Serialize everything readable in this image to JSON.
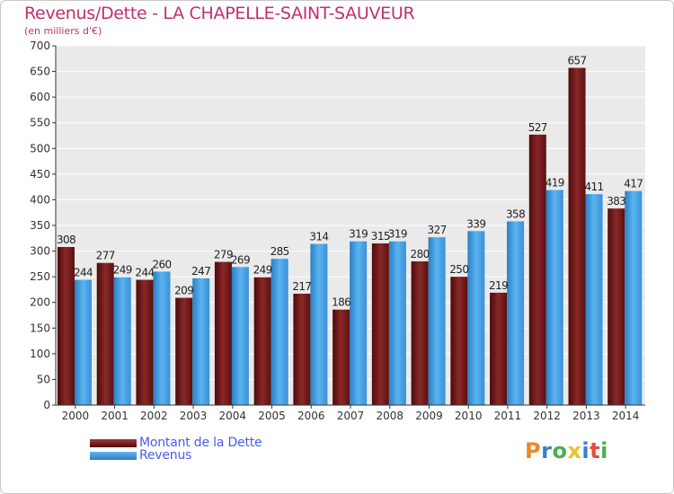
{
  "chart_data": {
    "type": "bar",
    "title": "Revenus/Dette - LA CHAPELLE-SAINT-SAUVEUR",
    "subtitle": "(en milliers d'€)",
    "categories": [
      "2000",
      "2001",
      "2002",
      "2003",
      "2004",
      "2005",
      "2006",
      "2007",
      "2008",
      "2009",
      "2010",
      "2011",
      "2012",
      "2013",
      "2014"
    ],
    "series": [
      {
        "name": "Montant de la Dette",
        "color": "#7a1a1a",
        "values": [
          308,
          277,
          244,
          209,
          279,
          249,
          217,
          186,
          315,
          280,
          250,
          219,
          527,
          657,
          383
        ]
      },
      {
        "name": "Revenus",
        "color": "#4aa6e8",
        "values": [
          244,
          249,
          260,
          247,
          269,
          285,
          314,
          319,
          319,
          327,
          339,
          358,
          419,
          411,
          417
        ]
      }
    ],
    "ylim": [
      0,
      700
    ],
    "yticks": [
      0,
      50,
      100,
      150,
      200,
      250,
      300,
      350,
      400,
      450,
      500,
      550,
      600,
      650,
      700
    ],
    "grid": true,
    "legend": [
      "Montant de la Dette",
      "Revenus"
    ]
  },
  "logo": {
    "letters": [
      "P",
      "r",
      "o",
      "x",
      "i",
      "t",
      "i"
    ],
    "colors": [
      "#e8892a",
      "#3a7fd0",
      "#4caf50",
      "#e8c22a",
      "#3a7fd0",
      "#e84a3a",
      "#4caf50"
    ]
  }
}
